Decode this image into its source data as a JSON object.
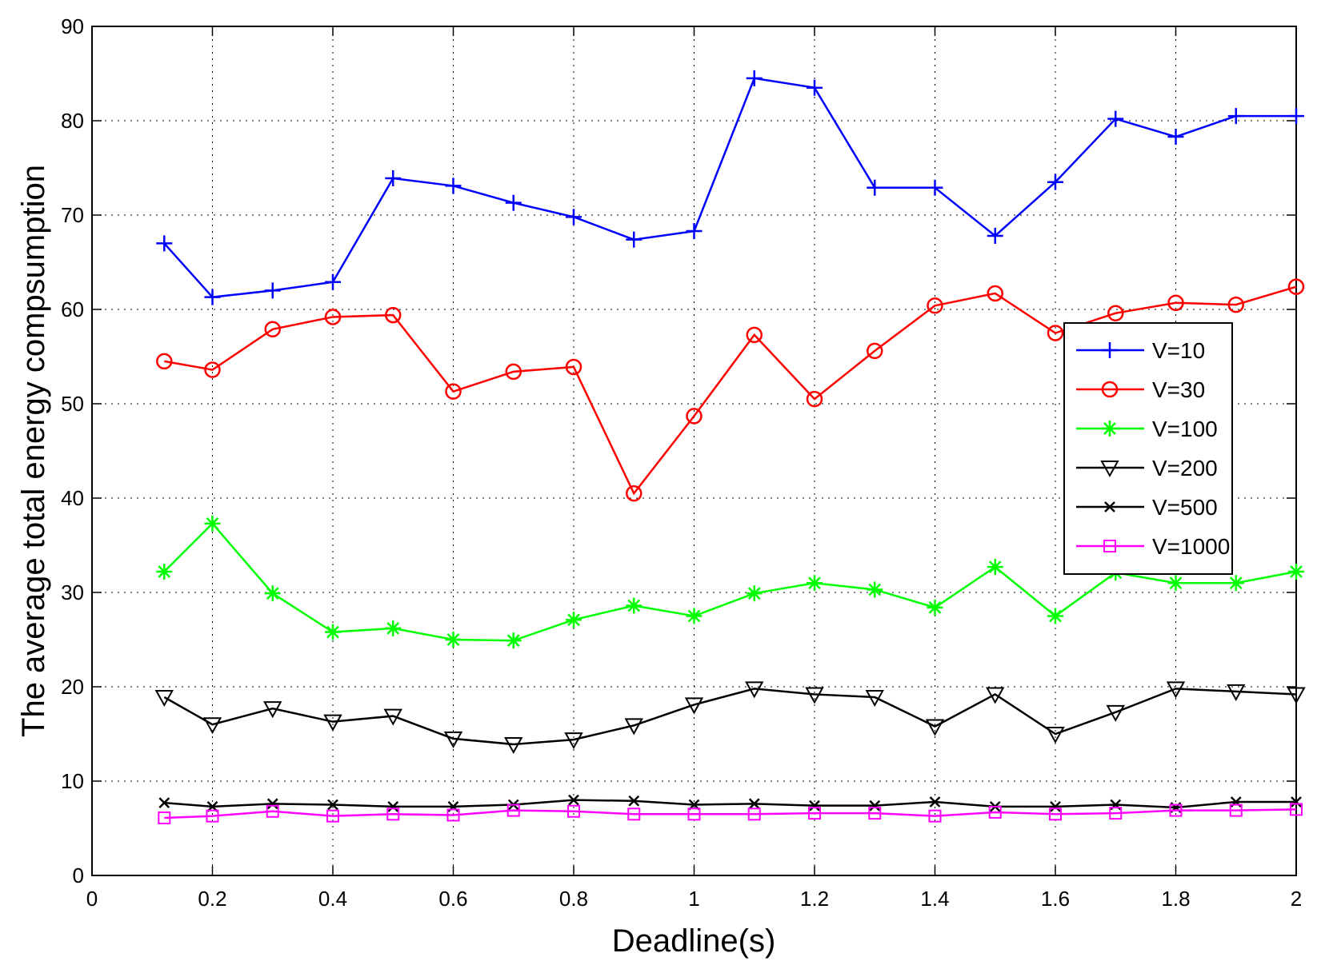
{
  "chart_data": {
    "type": "line",
    "title": "",
    "xlabel": "Deadline(s)",
    "ylabel": "The average total energy compsumption",
    "xlim": [
      0,
      2
    ],
    "ylim": [
      0,
      90
    ],
    "x_ticks": [
      0,
      0.2,
      0.4,
      0.6,
      0.8,
      1,
      1.2,
      1.4,
      1.6,
      1.8,
      2
    ],
    "x_tick_labels": [
      "0",
      "0.2",
      "0.4",
      "0.6",
      "0.8",
      "1",
      "1.2",
      "1.4",
      "1.6",
      "1.8",
      "2"
    ],
    "y_ticks": [
      0,
      10,
      20,
      30,
      40,
      50,
      60,
      70,
      80,
      90
    ],
    "y_tick_labels": [
      "0",
      "10",
      "20",
      "30",
      "40",
      "50",
      "60",
      "70",
      "80",
      "90"
    ],
    "grid": true,
    "legend_position": "right",
    "x": [
      0.12,
      0.2,
      0.3,
      0.4,
      0.5,
      0.6,
      0.7,
      0.8,
      0.9,
      1.0,
      1.1,
      1.2,
      1.3,
      1.4,
      1.5,
      1.6,
      1.7,
      1.8,
      1.9,
      2.0
    ],
    "series": [
      {
        "name": "V=10",
        "color": "#0000ff",
        "marker": "plus",
        "values": [
          67.0,
          61.3,
          62.0,
          62.9,
          73.9,
          73.1,
          71.3,
          69.8,
          67.4,
          68.3,
          84.5,
          83.5,
          72.9,
          72.9,
          67.8,
          73.5,
          80.2,
          78.3,
          80.5,
          80.5
        ]
      },
      {
        "name": "V=30",
        "color": "#ff0000",
        "marker": "circle",
        "values": [
          54.5,
          53.6,
          57.9,
          59.2,
          59.4,
          51.3,
          53.4,
          53.9,
          40.5,
          48.7,
          57.3,
          50.5,
          55.6,
          60.4,
          61.7,
          57.5,
          59.6,
          60.7,
          60.5,
          62.4
        ]
      },
      {
        "name": "V=100",
        "color": "#00ff00",
        "marker": "asterisk",
        "values": [
          32.2,
          37.3,
          29.9,
          25.8,
          26.2,
          25.0,
          24.9,
          27.1,
          28.6,
          27.5,
          29.9,
          31.0,
          30.3,
          28.4,
          32.7,
          27.5,
          32.1,
          31.0,
          31.0,
          32.2
        ]
      },
      {
        "name": "V=200",
        "color": "#000000",
        "marker": "triangle-down",
        "values": [
          18.9,
          16.0,
          17.7,
          16.3,
          16.9,
          14.5,
          13.9,
          14.4,
          15.9,
          18.1,
          19.8,
          19.2,
          18.9,
          15.8,
          19.2,
          15.0,
          17.3,
          19.8,
          19.5,
          19.2
        ]
      },
      {
        "name": "V=500",
        "color": "#000000",
        "marker": "x",
        "values": [
          7.7,
          7.3,
          7.6,
          7.5,
          7.3,
          7.3,
          7.5,
          8.0,
          7.9,
          7.5,
          7.6,
          7.4,
          7.4,
          7.8,
          7.3,
          7.3,
          7.5,
          7.2,
          7.8,
          7.8
        ]
      },
      {
        "name": "V=1000",
        "color": "#ff00ff",
        "marker": "square",
        "values": [
          6.1,
          6.3,
          6.8,
          6.3,
          6.5,
          6.4,
          6.9,
          6.8,
          6.5,
          6.5,
          6.5,
          6.6,
          6.6,
          6.3,
          6.7,
          6.5,
          6.6,
          6.9,
          6.9,
          7.0
        ]
      }
    ]
  }
}
